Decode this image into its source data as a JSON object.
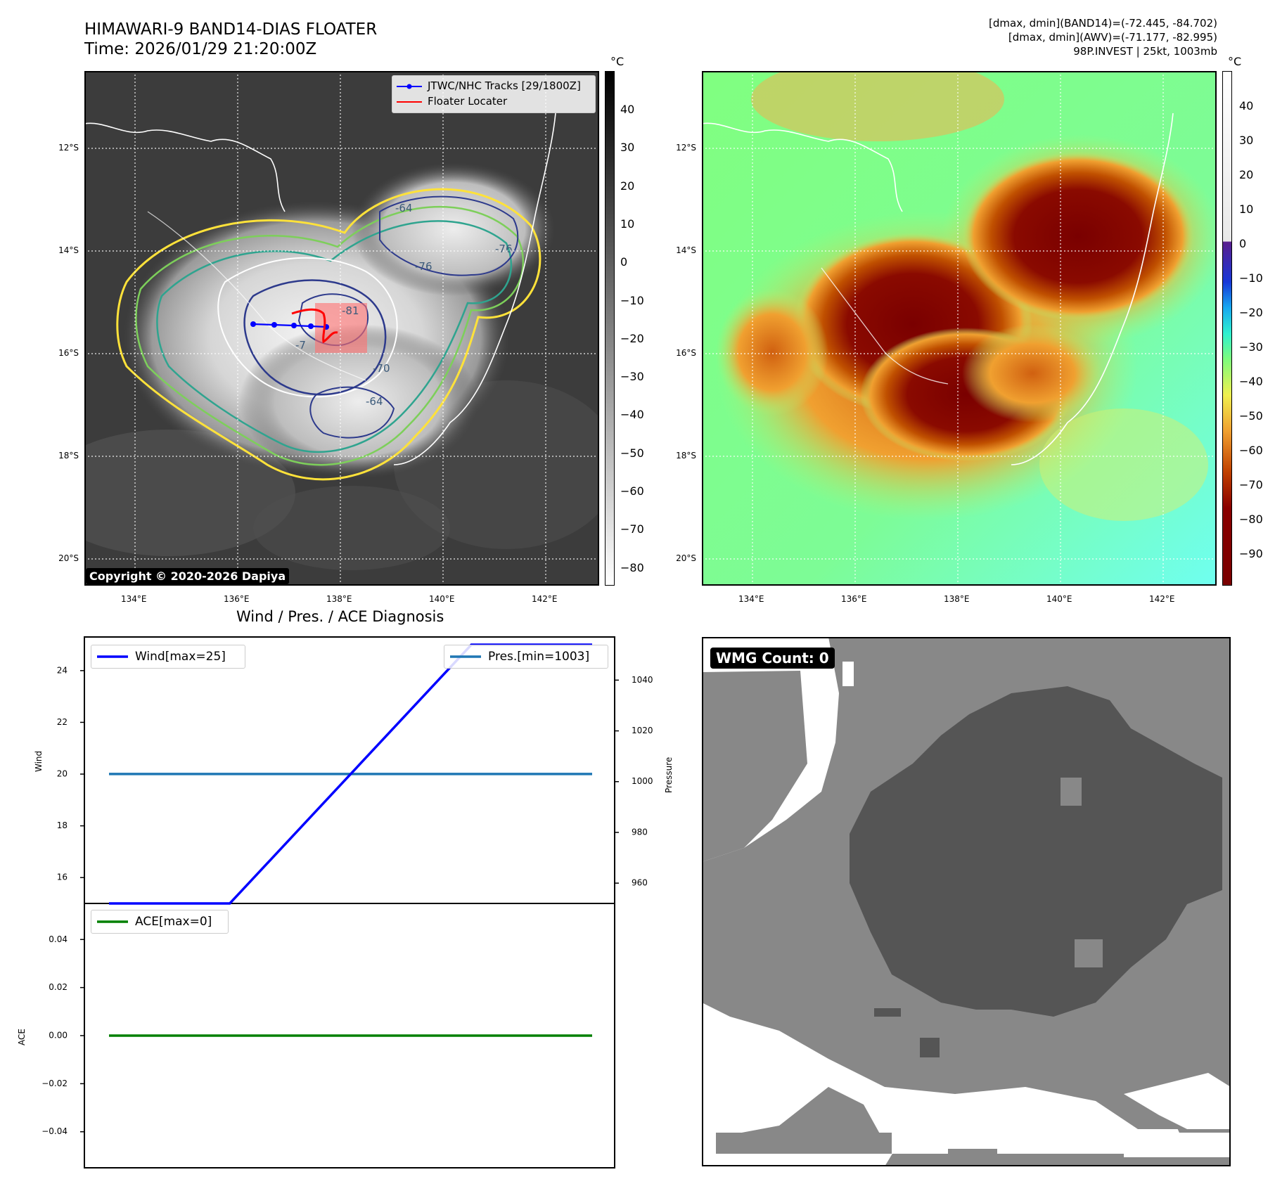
{
  "header": {
    "title_line1": "HIMAWARI-9 BAND14-DIAS FLOATER",
    "title_line2": "Time: 2026/01/29 21:20:00Z",
    "right_line1": "[dmax, dmin](BAND14)=(-72.445, -84.702)",
    "right_line2": "[dmax, dmin](AWV)=(-71.177, -82.995)",
    "right_line3": "98P.INVEST | 25kt, 1003mb"
  },
  "map_left": {
    "lat_ticks": [
      "12°S",
      "14°S",
      "16°S",
      "18°S",
      "20°S"
    ],
    "lon_ticks": [
      "134°E",
      "136°E",
      "138°E",
      "140°E",
      "142°E"
    ],
    "legend": {
      "tracks_label": "JTWC/NHC Tracks [29/1800Z]",
      "floater_label": "Floater Locater",
      "tracks_color": "#0000ff",
      "floater_color": "#ff0000"
    },
    "contour_labels": [
      "-64",
      "-76",
      "-81",
      "-7",
      "-64",
      "-76",
      "-70"
    ],
    "copyright": "Copyright © 2020-2026 Dapiya",
    "colorbar": {
      "unit": "°C",
      "ticks": [
        "40",
        "30",
        "20",
        "10",
        "0",
        "−10",
        "−20",
        "−30",
        "−40",
        "−50",
        "−60",
        "−70",
        "−80"
      ]
    }
  },
  "map_right": {
    "lat_ticks": [
      "12°S",
      "14°S",
      "16°S",
      "18°S",
      "20°S"
    ],
    "lon_ticks": [
      "134°E",
      "136°E",
      "138°E",
      "140°E",
      "142°E"
    ],
    "colorbar": {
      "unit": "°C",
      "ticks": [
        "40",
        "30",
        "20",
        "10",
        "0",
        "−10",
        "−20",
        "−30",
        "−40",
        "−50",
        "−60",
        "−70",
        "−80",
        "−90"
      ]
    }
  },
  "diagnosis": {
    "title": "Wind / Pres. / ACE Diagnosis"
  },
  "chart_data": [
    {
      "type": "line",
      "title": "Wind / Pres. / ACE Diagnosis",
      "ylabel": "Wind",
      "y2label": "Pressure",
      "x": [
        0,
        1,
        2,
        3,
        4
      ],
      "ylim": [
        15,
        25.3
      ],
      "y2lim": [
        952,
        1057
      ],
      "yticks": [
        "24",
        "22",
        "20",
        "18",
        "16"
      ],
      "y2ticks": [
        "1040",
        "1020",
        "1000",
        "980",
        "960"
      ],
      "series": [
        {
          "name": "Wind[max=25]",
          "axis": "left",
          "color": "#0000ff",
          "values": [
            15,
            15,
            20,
            25,
            25
          ]
        },
        {
          "name": "Pres.[min=1003]",
          "axis": "right",
          "color": "#1f77b4",
          "values": [
            1003,
            1003,
            1003,
            1003,
            1003
          ]
        }
      ]
    },
    {
      "type": "line",
      "ylabel": "ACE",
      "x": [
        0,
        1,
        2,
        3,
        4
      ],
      "ylim": [
        -0.055,
        0.055
      ],
      "yticks": [
        "0.04",
        "0.02",
        "0.00",
        "−0.02",
        "−0.04"
      ],
      "series": [
        {
          "name": "ACE[max=0]",
          "axis": "left",
          "color": "#008000",
          "values": [
            0,
            0,
            0,
            0,
            0
          ]
        }
      ]
    },
    {
      "type": "heatmap",
      "label": "WMG Count: 0"
    }
  ]
}
